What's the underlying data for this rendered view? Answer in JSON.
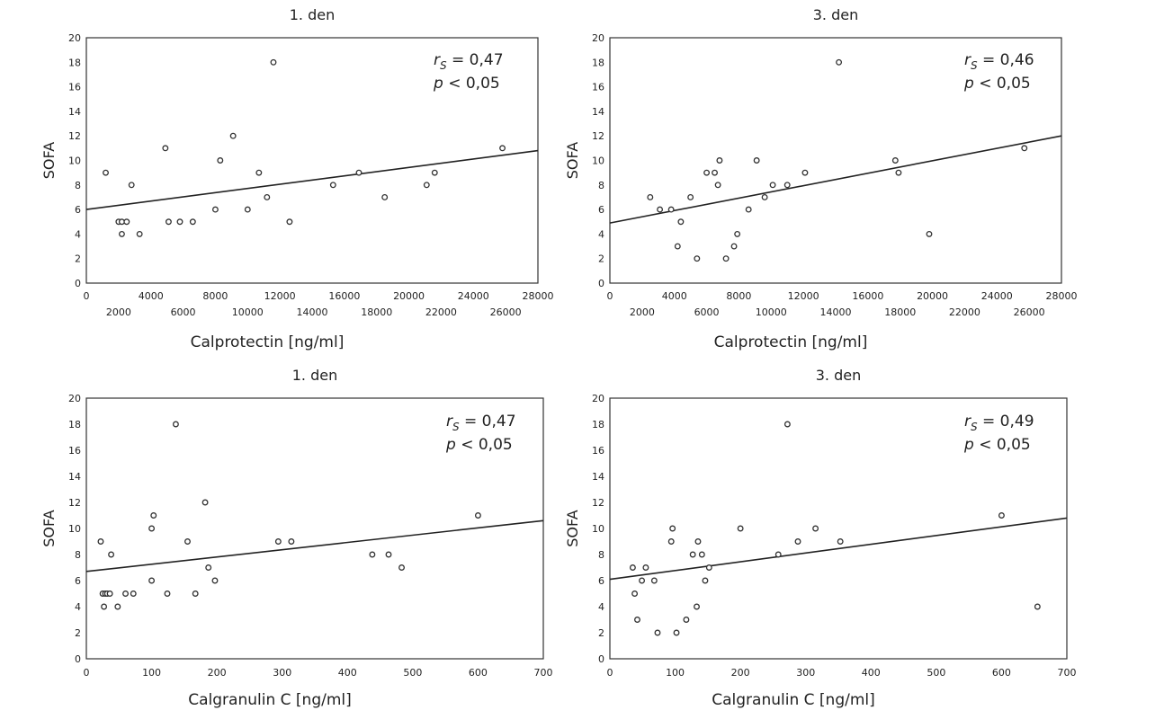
{
  "chart_data": [
    {
      "type": "scatter",
      "title": "1. den",
      "xlabel": "Calprotectin [ng/ml]",
      "ylabel": "SOFA",
      "xlim": [
        0,
        28000
      ],
      "ylim": [
        0,
        20
      ],
      "x_ticks_upper": [
        "0",
        "4000",
        "8000",
        "12000",
        "16000",
        "20000",
        "24000",
        "28000"
      ],
      "x_ticks_lower": [
        "2000",
        "6000",
        "10000",
        "14000",
        "18000",
        "22000",
        "26000"
      ],
      "y_ticks": [
        "0",
        "2",
        "4",
        "6",
        "8",
        "10",
        "12",
        "14",
        "16",
        "18",
        "20"
      ],
      "stat_r_symbol": "r",
      "stat_r_sub": "S",
      "stat_r_value": " = 0,47",
      "stat_p_symbol": "p",
      "stat_p_value": " < 0,05",
      "regression": {
        "x": [
          0,
          28000
        ],
        "y": [
          6.0,
          10.8
        ]
      },
      "points": [
        {
          "x": 1200,
          "y": 9
        },
        {
          "x": 2000,
          "y": 5
        },
        {
          "x": 2200,
          "y": 5
        },
        {
          "x": 2200,
          "y": 4
        },
        {
          "x": 2500,
          "y": 5
        },
        {
          "x": 2800,
          "y": 8
        },
        {
          "x": 3300,
          "y": 4
        },
        {
          "x": 4900,
          "y": 11
        },
        {
          "x": 5100,
          "y": 5
        },
        {
          "x": 5800,
          "y": 5
        },
        {
          "x": 6600,
          "y": 5
        },
        {
          "x": 8000,
          "y": 6
        },
        {
          "x": 8300,
          "y": 10
        },
        {
          "x": 9100,
          "y": 12
        },
        {
          "x": 10000,
          "y": 6
        },
        {
          "x": 10700,
          "y": 9
        },
        {
          "x": 11200,
          "y": 7
        },
        {
          "x": 11600,
          "y": 18
        },
        {
          "x": 12600,
          "y": 5
        },
        {
          "x": 15300,
          "y": 8
        },
        {
          "x": 16900,
          "y": 9
        },
        {
          "x": 18500,
          "y": 7
        },
        {
          "x": 21100,
          "y": 8
        },
        {
          "x": 21600,
          "y": 9
        },
        {
          "x": 25800,
          "y": 11
        }
      ]
    },
    {
      "type": "scatter",
      "title": "3. den",
      "xlabel": "Calprotectin [ng/ml]",
      "ylabel": "SOFA",
      "xlim": [
        0,
        28000
      ],
      "ylim": [
        0,
        20
      ],
      "x_ticks_upper": [
        "0",
        "4000",
        "8000",
        "12000",
        "16000",
        "20000",
        "24000",
        "28000"
      ],
      "x_ticks_lower": [
        "2000",
        "6000",
        "10000",
        "14000",
        "18000",
        "22000",
        "26000"
      ],
      "y_ticks": [
        "0",
        "2",
        "4",
        "6",
        "8",
        "10",
        "12",
        "14",
        "16",
        "18",
        "20"
      ],
      "stat_r_symbol": "r",
      "stat_r_sub": "S",
      "stat_r_value": " = 0,46",
      "stat_p_symbol": "p",
      "stat_p_value": " < 0,05",
      "regression": {
        "x": [
          0,
          28000
        ],
        "y": [
          4.9,
          12.0
        ]
      },
      "points": [
        {
          "x": 2500,
          "y": 7
        },
        {
          "x": 3100,
          "y": 6
        },
        {
          "x": 3800,
          "y": 6
        },
        {
          "x": 4200,
          "y": 3
        },
        {
          "x": 4400,
          "y": 5
        },
        {
          "x": 5000,
          "y": 7
        },
        {
          "x": 5400,
          "y": 2
        },
        {
          "x": 6000,
          "y": 9
        },
        {
          "x": 6500,
          "y": 9
        },
        {
          "x": 6700,
          "y": 8
        },
        {
          "x": 6800,
          "y": 10
        },
        {
          "x": 7200,
          "y": 2
        },
        {
          "x": 7700,
          "y": 3
        },
        {
          "x": 7900,
          "y": 4
        },
        {
          "x": 8600,
          "y": 6
        },
        {
          "x": 9100,
          "y": 10
        },
        {
          "x": 9600,
          "y": 7
        },
        {
          "x": 10100,
          "y": 8
        },
        {
          "x": 11000,
          "y": 8
        },
        {
          "x": 12100,
          "y": 9
        },
        {
          "x": 14200,
          "y": 18
        },
        {
          "x": 17700,
          "y": 10
        },
        {
          "x": 17900,
          "y": 9
        },
        {
          "x": 19800,
          "y": 4
        },
        {
          "x": 25700,
          "y": 11
        }
      ]
    },
    {
      "type": "scatter",
      "title": "1. den",
      "xlabel": "Calgranulin C [ng/ml]",
      "ylabel": "SOFA",
      "xlim": [
        0,
        700
      ],
      "ylim": [
        0,
        20
      ],
      "x_ticks": [
        "0",
        "100",
        "200",
        "300",
        "400",
        "500",
        "600",
        "700"
      ],
      "y_ticks": [
        "0",
        "2",
        "4",
        "6",
        "8",
        "10",
        "12",
        "14",
        "16",
        "18",
        "20"
      ],
      "stat_r_symbol": "r",
      "stat_r_sub": "S",
      "stat_r_value": " = 0,47",
      "stat_p_symbol": "p",
      "stat_p_value": " < 0,05",
      "regression": {
        "x": [
          0,
          700
        ],
        "y": [
          6.7,
          10.6
        ]
      },
      "points": [
        {
          "x": 22,
          "y": 9
        },
        {
          "x": 25,
          "y": 5
        },
        {
          "x": 27,
          "y": 4
        },
        {
          "x": 29,
          "y": 5
        },
        {
          "x": 32,
          "y": 5
        },
        {
          "x": 36,
          "y": 5
        },
        {
          "x": 38,
          "y": 8
        },
        {
          "x": 48,
          "y": 4
        },
        {
          "x": 60,
          "y": 5
        },
        {
          "x": 72,
          "y": 5
        },
        {
          "x": 100,
          "y": 10
        },
        {
          "x": 103,
          "y": 11
        },
        {
          "x": 100,
          "y": 6
        },
        {
          "x": 124,
          "y": 5
        },
        {
          "x": 137,
          "y": 18
        },
        {
          "x": 155,
          "y": 9
        },
        {
          "x": 167,
          "y": 5
        },
        {
          "x": 182,
          "y": 12
        },
        {
          "x": 187,
          "y": 7
        },
        {
          "x": 197,
          "y": 6
        },
        {
          "x": 294,
          "y": 9
        },
        {
          "x": 314,
          "y": 9
        },
        {
          "x": 438,
          "y": 8
        },
        {
          "x": 463,
          "y": 8
        },
        {
          "x": 483,
          "y": 7
        },
        {
          "x": 600,
          "y": 11
        }
      ]
    },
    {
      "type": "scatter",
      "title": "3. den",
      "xlabel": "Calgranulin C [ng/ml]",
      "ylabel": "SOFA",
      "xlim": [
        0,
        700
      ],
      "ylim": [
        0,
        20
      ],
      "x_ticks": [
        "0",
        "100",
        "200",
        "300",
        "400",
        "500",
        "600",
        "700"
      ],
      "y_ticks": [
        "0",
        "2",
        "4",
        "6",
        "8",
        "10",
        "12",
        "14",
        "16",
        "18",
        "20"
      ],
      "stat_r_symbol": "r",
      "stat_r_sub": "S",
      "stat_r_value": " = 0,49",
      "stat_p_symbol": "p",
      "stat_p_value": " < 0,05",
      "regression": {
        "x": [
          0,
          700
        ],
        "y": [
          6.1,
          10.8
        ]
      },
      "points": [
        {
          "x": 35,
          "y": 7
        },
        {
          "x": 38,
          "y": 5
        },
        {
          "x": 42,
          "y": 3
        },
        {
          "x": 49,
          "y": 6
        },
        {
          "x": 55,
          "y": 7
        },
        {
          "x": 68,
          "y": 6
        },
        {
          "x": 73,
          "y": 2
        },
        {
          "x": 94,
          "y": 9
        },
        {
          "x": 96,
          "y": 10
        },
        {
          "x": 102,
          "y": 2
        },
        {
          "x": 117,
          "y": 3
        },
        {
          "x": 127,
          "y": 8
        },
        {
          "x": 133,
          "y": 4
        },
        {
          "x": 135,
          "y": 9
        },
        {
          "x": 141,
          "y": 8
        },
        {
          "x": 146,
          "y": 6
        },
        {
          "x": 152,
          "y": 7
        },
        {
          "x": 200,
          "y": 10
        },
        {
          "x": 258,
          "y": 8
        },
        {
          "x": 272,
          "y": 18
        },
        {
          "x": 288,
          "y": 9
        },
        {
          "x": 315,
          "y": 10
        },
        {
          "x": 353,
          "y": 9
        },
        {
          "x": 600,
          "y": 11
        },
        {
          "x": 655,
          "y": 4
        }
      ]
    }
  ]
}
